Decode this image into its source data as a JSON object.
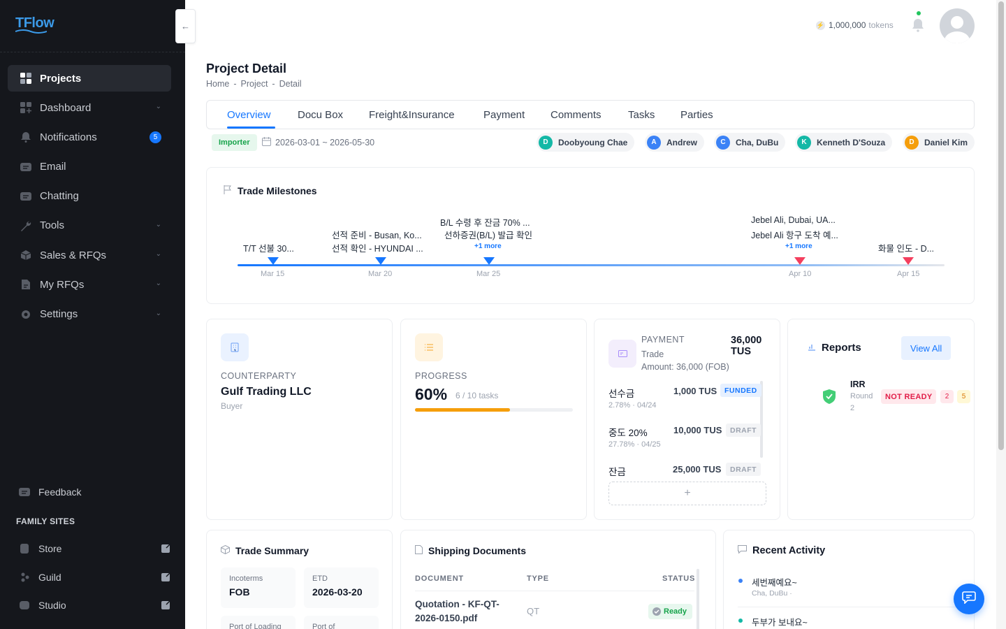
{
  "app": {
    "logo": "TFlow"
  },
  "sidebar": {
    "items": [
      {
        "label": "Projects",
        "active": true,
        "icon": "grid-icon"
      },
      {
        "label": "Dashboard",
        "chevron": true,
        "icon": "dashboard-icon"
      },
      {
        "label": "Notifications",
        "badge": "5",
        "icon": "bell-icon"
      },
      {
        "label": "Email",
        "icon": "email-icon"
      },
      {
        "label": "Chatting",
        "icon": "chat-icon"
      },
      {
        "label": "Tools",
        "chevron": true,
        "icon": "wrench-icon"
      },
      {
        "label": "Sales & RFQs",
        "chevron": true,
        "icon": "box-icon"
      },
      {
        "label": "My RFQs",
        "chevron": true,
        "icon": "document-icon"
      },
      {
        "label": "Settings",
        "chevron": true,
        "icon": "gear-icon"
      }
    ],
    "feedback": "Feedback",
    "family_title": "FAMILY SITES",
    "family": [
      {
        "label": "Store"
      },
      {
        "label": "Guild"
      },
      {
        "label": "Studio"
      }
    ]
  },
  "topbar": {
    "tokens": "1,000,000",
    "tokens_unit": "tokens"
  },
  "page": {
    "title": "Project Detail",
    "breadcrumb": [
      "Home",
      "Project",
      "Detail"
    ]
  },
  "tabs": [
    "Overview",
    "Docu Box",
    "Freight&Insurance",
    "Payment",
    "Comments",
    "Tasks",
    "Parties"
  ],
  "meta": {
    "role": "Importer",
    "date_range": "2026-03-01 ~ 2026-05-30",
    "participants": [
      {
        "initial": "D",
        "name": "Doobyoung Chae",
        "color": "#14b8a6"
      },
      {
        "initial": "A",
        "name": "Andrew",
        "color": "#3b82f6"
      },
      {
        "initial": "C",
        "name": "Cha, DuBu",
        "color": "#3b82f6"
      },
      {
        "initial": "K",
        "name": "Kenneth D'Souza",
        "color": "#14b8a6"
      },
      {
        "initial": "D",
        "name": "Daniel Kim",
        "color": "#f59e0b"
      }
    ]
  },
  "milestones": {
    "title": "Trade Milestones",
    "points": [
      {
        "date": "Mar 15",
        "labels": [
          "T/T 선불 30..."
        ],
        "more": "",
        "color": "blue"
      },
      {
        "date": "Mar 20",
        "labels": [
          "선적 준비 - Busan, Ko...",
          "선적 확인 - HYUNDAI ..."
        ],
        "more": "",
        "color": "blue"
      },
      {
        "date": "Mar 25",
        "labels": [
          "B/L 수령 후 잔금 70% ...",
          "선하증권(B/L) 발급 확인"
        ],
        "more": "+1 more",
        "color": "blue"
      },
      {
        "date": "Apr 10",
        "labels": [
          "Jebel Ali, Dubai, UA...",
          "Jebel Ali 항구 도착 예..."
        ],
        "more": "+1 more",
        "color": "red"
      },
      {
        "date": "Apr 15",
        "labels": [
          "화물 인도 - D..."
        ],
        "more": "",
        "color": "red"
      }
    ]
  },
  "counterparty": {
    "caption": "COUNTERPARTY",
    "name": "Gulf Trading LLC",
    "role": "Buyer"
  },
  "progress": {
    "caption": "PROGRESS",
    "percent": "60%",
    "tasks": "6 / 10 tasks",
    "value": 0.6
  },
  "payment": {
    "caption": "PAYMENT",
    "total": "36,000 TUS",
    "line1": "Trade",
    "line2": "Amount: 36,000 (FOB)",
    "rows": [
      {
        "label": "선수금",
        "amount": "1,000 TUS",
        "status": "FUNDED",
        "sub": "2.78% · 04/24"
      },
      {
        "label": "중도 20%",
        "amount": "10,000 TUS",
        "status": "DRAFT",
        "sub": "27.78% · 04/25"
      },
      {
        "label": "잔금",
        "amount": "25,000 TUS",
        "status": "DRAFT",
        "sub": ""
      }
    ],
    "add": "+"
  },
  "reports": {
    "title": "Reports",
    "view_all": "View All",
    "item": {
      "name": "IRR",
      "round": "Round",
      "round_no": "2",
      "status": "NOT READY",
      "count_a": "2",
      "count_b": "5"
    }
  },
  "trade_summary": {
    "title": "Trade Summary",
    "fields": [
      {
        "k": "Incoterms",
        "v": "FOB"
      },
      {
        "k": "ETD",
        "v": "2026-03-20"
      },
      {
        "k": "Port of Loading",
        "v": ""
      },
      {
        "k": "Port of",
        "v": ""
      }
    ]
  },
  "shipping_docs": {
    "title": "Shipping Documents",
    "headers": [
      "DOCUMENT",
      "TYPE",
      "STATUS"
    ],
    "rows": [
      {
        "document": "Quotation - KF-QT-2026-0150.pdf",
        "type": "QT",
        "status": "Ready"
      }
    ]
  },
  "activity": {
    "title": "Recent Activity",
    "items": [
      {
        "text": "세번째예요~",
        "by": "Cha, DuBu ·",
        "color": "#3b82f6"
      },
      {
        "text": "두부가 보내요~",
        "by": "",
        "color": "#14b8a6"
      }
    ]
  }
}
